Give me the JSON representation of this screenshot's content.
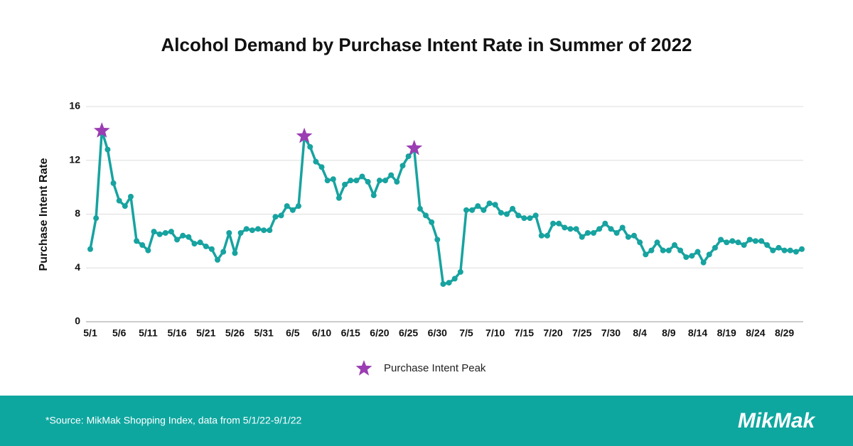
{
  "chart_data": {
    "type": "line",
    "title": "Alcohol Demand by Purchase Intent Rate in Summer of 2022",
    "y_label": "Purchase Intent Rate",
    "categories": [
      "5/1",
      null,
      null,
      null,
      null,
      "5/6",
      null,
      null,
      null,
      null,
      "5/11",
      null,
      null,
      null,
      null,
      "5/16",
      null,
      null,
      null,
      null,
      "5/21",
      null,
      null,
      null,
      null,
      "5/26",
      null,
      null,
      null,
      null,
      "5/31",
      null,
      null,
      null,
      null,
      "6/5",
      null,
      null,
      null,
      null,
      "6/10",
      null,
      null,
      null,
      null,
      "6/15",
      null,
      null,
      null,
      null,
      "6/20",
      null,
      null,
      null,
      null,
      "6/25",
      null,
      null,
      null,
      null,
      "6/30",
      null,
      null,
      null,
      null,
      "7/5",
      null,
      null,
      null,
      null,
      "7/10",
      null,
      null,
      null,
      null,
      "7/15",
      null,
      null,
      null,
      null,
      "7/20",
      null,
      null,
      null,
      null,
      "7/25",
      null,
      null,
      null,
      null,
      "7/30",
      null,
      null,
      null,
      null,
      "8/4",
      null,
      null,
      null,
      null,
      "8/9",
      null,
      null,
      null,
      null,
      "8/14",
      null,
      null,
      null,
      null,
      "8/19",
      null,
      null,
      null,
      null,
      "8/24",
      null,
      null,
      null,
      null,
      "8/29",
      null,
      null,
      null
    ],
    "series": [
      {
        "color": "#17a3a0",
        "values": [
          5.4,
          7.7,
          14.2,
          12.8,
          10.3,
          9.0,
          8.6,
          9.3,
          6.0,
          5.7,
          5.3,
          6.7,
          6.5,
          6.6,
          6.7,
          6.1,
          6.4,
          6.3,
          5.8,
          5.9,
          5.6,
          5.4,
          4.6,
          5.2,
          6.6,
          5.1,
          6.6,
          6.9,
          6.8,
          6.9,
          6.8,
          6.8,
          7.8,
          7.9,
          8.6,
          8.3,
          8.6,
          13.7,
          13.0,
          11.9,
          11.5,
          10.5,
          10.6,
          9.2,
          10.2,
          10.5,
          10.5,
          10.8,
          10.4,
          9.4,
          10.5,
          10.5,
          10.9,
          10.4,
          11.6,
          12.3,
          12.8,
          8.4,
          7.9,
          7.4,
          6.1,
          2.8,
          2.9,
          3.2,
          3.7,
          8.3,
          8.3,
          8.6,
          8.3,
          8.8,
          8.7,
          8.1,
          8.0,
          8.4,
          7.9,
          7.7,
          7.7,
          7.9,
          6.4,
          6.4,
          7.3,
          7.3,
          7.0,
          6.9,
          6.9,
          6.3,
          6.6,
          6.6,
          6.9,
          7.3,
          6.9,
          6.6,
          7.0,
          6.3,
          6.4,
          5.9,
          5.0,
          5.3,
          5.9,
          5.3,
          5.3,
          5.7,
          5.3,
          4.8,
          4.9,
          5.2,
          4.4,
          5.0,
          5.5,
          6.1,
          5.9,
          6.0,
          5.9,
          5.7,
          6.1,
          6.0,
          6.0,
          5.7,
          5.3,
          5.5,
          5.3,
          5.3,
          5.2,
          5.4
        ]
      },
      {
        "name": "Purchase Intent Peak",
        "color": "#9b3db3",
        "values": [
          null,
          null,
          14.2,
          null,
          null,
          null,
          null,
          null,
          null,
          null,
          null,
          null,
          null,
          null,
          null,
          null,
          null,
          null,
          null,
          null,
          null,
          null,
          null,
          null,
          null,
          null,
          null,
          null,
          null,
          null,
          null,
          null,
          null,
          null,
          null,
          null,
          null,
          13.8,
          null,
          null,
          null,
          null,
          null,
          null,
          null,
          null,
          null,
          null,
          null,
          null,
          null,
          null,
          null,
          null,
          null,
          null,
          12.9,
          null,
          null,
          null,
          null,
          null,
          null,
          null,
          null,
          null,
          null,
          null,
          null,
          null,
          null,
          null,
          null,
          null,
          null,
          null,
          null,
          null,
          null,
          null,
          null,
          null,
          null,
          null,
          null,
          null,
          null,
          null,
          null,
          null,
          null,
          null,
          null,
          null,
          null,
          null,
          null,
          null,
          null,
          null,
          null,
          null,
          null,
          null,
          null,
          null,
          null,
          null,
          null,
          null,
          null,
          null,
          null,
          null,
          null,
          null,
          null,
          null,
          null,
          null,
          null,
          null,
          null,
          null
        ]
      }
    ],
    "ylim": [
      0,
      16
    ],
    "yticks": [
      0,
      4,
      8,
      12,
      16
    ],
    "grid": true,
    "footer": {
      "source": "*Source: MikMak Shopping Index, data from 5/1/22-9/1/22",
      "logo": "MikMak",
      "background": "#0ea7a0"
    }
  }
}
